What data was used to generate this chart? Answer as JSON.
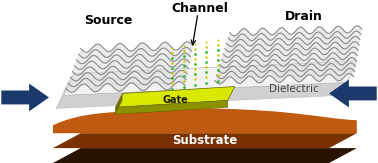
{
  "bg_color": "#ffffff",
  "labels": {
    "source": "Source",
    "channel": "Channel",
    "drain": "Drain",
    "gate": "Gate",
    "dielectric": "Dielectric",
    "substrate": "Substrate"
  },
  "arrow_color": "#1b3a6b",
  "gate_yellow": "#d8e800",
  "gate_yellow_dark": "#8a9200",
  "gate_olive": "#6b6b00",
  "dielectric_white": "#f2f2f2",
  "dielectric_gray": "#d0d0d0",
  "dielectric_edge": "#b0b0b0",
  "substrate_orange": "#c05a10",
  "substrate_brown": "#7a3000",
  "substrate_dark": "#2a1200",
  "graphene_light": "#d0d0d0",
  "graphene_dark": "#505050",
  "mos2_green": "#33bb33",
  "mos2_yellow": "#cccc00"
}
